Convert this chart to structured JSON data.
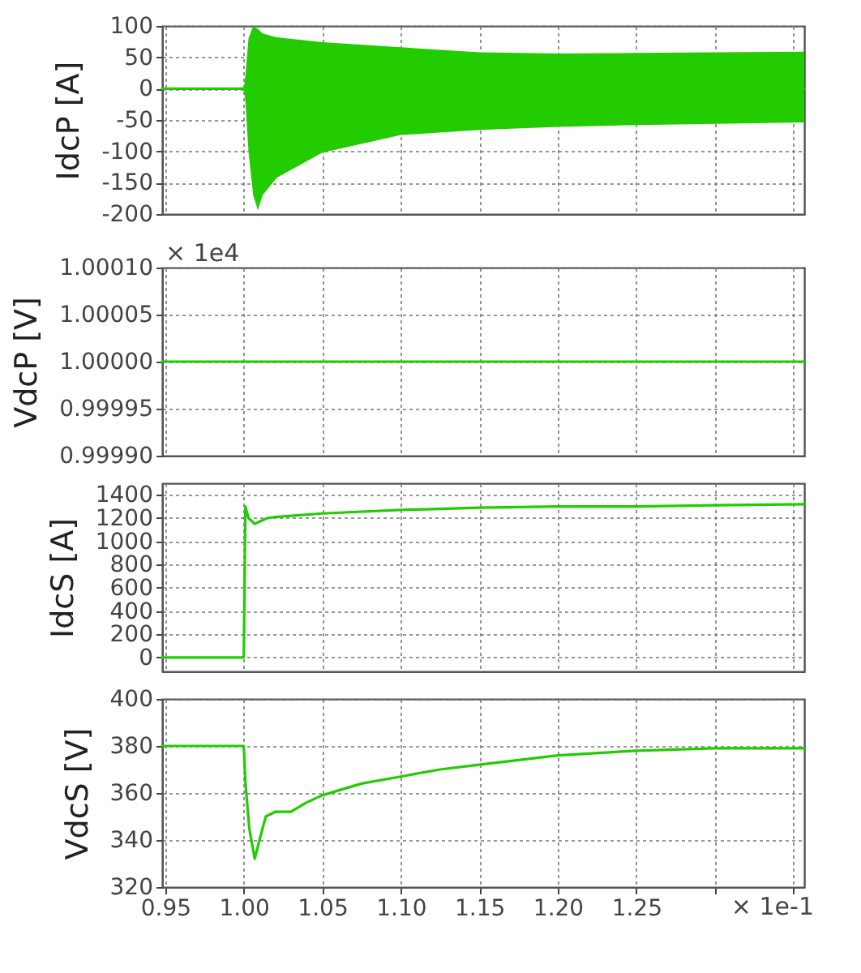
{
  "chart_data": [
    {
      "type": "line",
      "ylabel": "IdcP [A]",
      "xlim": [
        0.948,
        1.357
      ],
      "xticks": [
        0.95,
        1.0,
        1.05,
        1.1,
        1.15,
        1.2,
        1.25,
        {
          "value": 1.3,
          "label": null
        },
        {
          "value": 1.35,
          "label": null
        }
      ],
      "ylim": [
        -200,
        100
      ],
      "yticks": [
        -200,
        -150,
        -100,
        -50,
        0,
        50,
        100
      ],
      "grid": true,
      "tick_labels": "y",
      "series": [
        {
          "color": "#22cc00",
          "x": [
            0.948,
            1.0,
            1.001,
            1.003,
            1.006,
            1.009,
            1.012,
            1.021,
            1.05,
            1.1,
            1.15,
            1.2,
            1.25,
            1.3,
            1.357
          ],
          "values": [
            0,
            0,
            0,
            0,
            0,
            0,
            0,
            0,
            0,
            0,
            0,
            0,
            0,
            0,
            0
          ],
          "lower": [
            0,
            0,
            -20,
            -100,
            -170,
            -194,
            -170,
            -142,
            -102,
            -74,
            -66,
            -61,
            -58,
            -56,
            -54
          ],
          "upper": [
            0,
            0,
            20,
            80,
            100,
            95,
            88,
            82,
            74,
            66,
            58,
            56,
            57,
            58,
            59
          ]
        }
      ]
    },
    {
      "type": "line",
      "ylabel": "VdcP [V]",
      "annotations": [
        "× 1e4"
      ],
      "xlim": [
        0.948,
        1.357
      ],
      "xticks": [
        0.95,
        1.0,
        1.05,
        1.1,
        1.15,
        1.2,
        1.25,
        {
          "value": 1.3,
          "label": null
        },
        {
          "value": 1.35,
          "label": null
        }
      ],
      "ylim": [
        0.9999,
        1.0001
      ],
      "yticks": [
        {
          "value": 0.9999,
          "label": "0.99990"
        },
        {
          "value": 0.99995,
          "label": "0.99995"
        },
        {
          "value": 1.0,
          "label": "1.00000"
        },
        {
          "value": 1.00005,
          "label": "1.00005"
        },
        {
          "value": 1.0001,
          "label": "1.00010"
        }
      ],
      "grid": true,
      "tick_labels": "y",
      "series": [
        {
          "color": "#22cc00",
          "x": [
            0.948,
            1.357
          ],
          "values": [
            1.0,
            1.0
          ]
        }
      ]
    },
    {
      "type": "line",
      "ylabel": "IdcS [A]",
      "xlim": [
        0.948,
        1.357
      ],
      "xticks": [
        0.95,
        1.0,
        1.05,
        1.1,
        1.15,
        1.2,
        1.25,
        {
          "value": 1.3,
          "label": null
        },
        {
          "value": 1.35,
          "label": null
        }
      ],
      "ylim": [
        -120,
        1500
      ],
      "yticks": [
        0,
        200,
        400,
        600,
        800,
        1000,
        1200,
        1400
      ],
      "grid": true,
      "tick_labels": "y",
      "series": [
        {
          "color": "#22cc00",
          "x": [
            0.948,
            1.0,
            1.001,
            1.003,
            1.007,
            1.01,
            1.015,
            1.02,
            1.05,
            1.1,
            1.15,
            1.2,
            1.25,
            1.3,
            1.357
          ],
          "values": [
            0,
            0,
            1300,
            1200,
            1150,
            1170,
            1200,
            1210,
            1240,
            1270,
            1290,
            1300,
            1300,
            1310,
            1320
          ]
        }
      ]
    },
    {
      "type": "line",
      "ylabel": "VdcS [V]",
      "annotations": [
        "× 1e-1"
      ],
      "xlim": [
        0.948,
        1.357
      ],
      "xticks": [
        0.95,
        {
          "value": 1.0,
          "label": "1.00"
        },
        1.05,
        {
          "value": 1.1,
          "label": "1.10"
        },
        1.15,
        {
          "value": 1.2,
          "label": "1.20"
        },
        1.25,
        {
          "value": 1.3,
          "label": null
        },
        {
          "value": 1.35,
          "label": null
        }
      ],
      "ylim": [
        320,
        400
      ],
      "yticks": [
        320,
        340,
        360,
        380,
        400
      ],
      "grid": true,
      "series": [
        {
          "color": "#22cc00",
          "x": [
            0.948,
            1.0,
            1.001,
            1.0035,
            1.007,
            1.01,
            1.014,
            1.02,
            1.03,
            1.04,
            1.05,
            1.075,
            1.1,
            1.125,
            1.15,
            1.2,
            1.25,
            1.3,
            1.357
          ],
          "values": [
            380,
            380,
            365,
            345,
            332,
            340,
            350,
            352,
            352,
            356,
            359,
            364,
            367,
            370,
            372,
            376,
            378,
            379,
            379
          ]
        }
      ]
    }
  ]
}
